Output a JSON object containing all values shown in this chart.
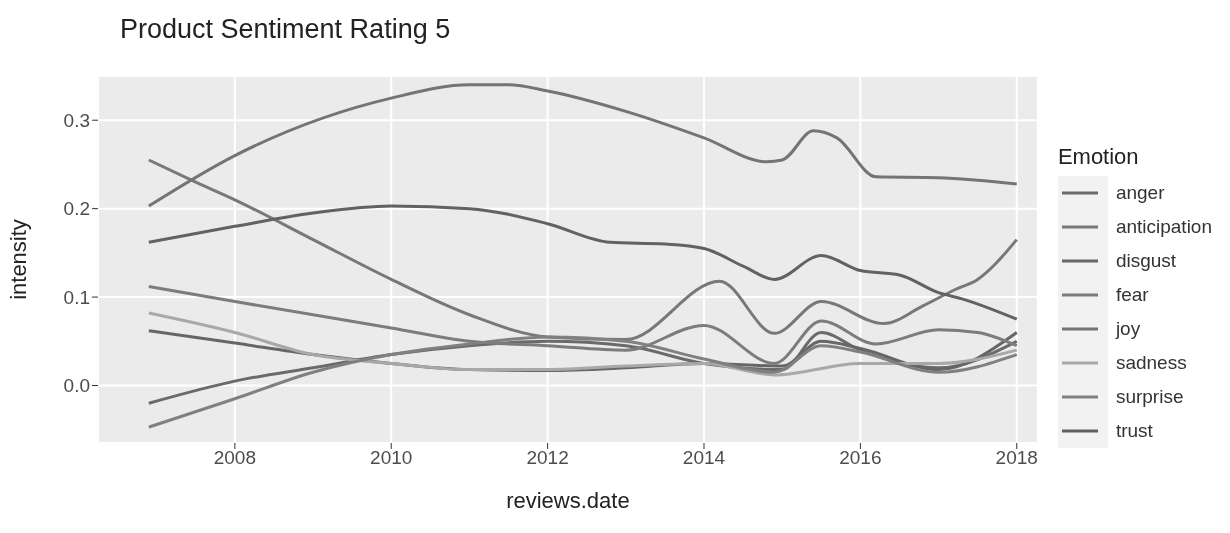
{
  "chart_data": {
    "type": "line",
    "title": "Product  Sentiment Rating 5",
    "xlabel": "reviews.date",
    "ylabel": "intensity",
    "legend_title": "Emotion",
    "legend": "right",
    "grid": true,
    "xlim": [
      2006.25,
      2018.27
    ],
    "xticks": [
      2008,
      2010,
      2012,
      2014,
      2016,
      2018
    ],
    "ylim": [
      -0.065,
      0.35
    ],
    "yticks": [
      {
        "value": 0,
        "label": "0.0"
      },
      {
        "value": 0.1,
        "label": "0.1"
      },
      {
        "value": 0.2,
        "label": "0.2"
      },
      {
        "value": 0.3,
        "label": "0.3"
      }
    ],
    "series": [
      {
        "name": "anger",
        "color": "#6a6a6a",
        "x": [
          2006.9,
          2008,
          2009,
          2010,
          2011,
          2012,
          2013,
          2014,
          2015,
          2015.5,
          2016,
          2017,
          2018
        ],
        "values": [
          -0.02,
          0.005,
          0.02,
          0.035,
          0.045,
          0.05,
          0.045,
          0.025,
          0.018,
          0.06,
          0.04,
          0.02,
          0.05
        ]
      },
      {
        "name": "anticipation",
        "color": "#787878",
        "x": [
          2006.9,
          2007.5,
          2008,
          2009,
          2010,
          2011,
          2012,
          2013,
          2014.2,
          2014.9,
          2015.5,
          2016.3,
          2016.8,
          2017.2,
          2017.5,
          2018
        ],
        "values": [
          0.255,
          0.23,
          0.21,
          0.165,
          0.12,
          0.08,
          0.055,
          0.052,
          0.118,
          0.059,
          0.095,
          0.07,
          0.09,
          0.108,
          0.12,
          0.165
        ]
      },
      {
        "name": "disgust",
        "color": "#666666",
        "x": [
          2006.9,
          2008,
          2009,
          2010,
          2011,
          2012,
          2013,
          2014,
          2015,
          2015.5,
          2016,
          2017,
          2018
        ],
        "values": [
          0.062,
          0.048,
          0.035,
          0.025,
          0.018,
          0.017,
          0.02,
          0.025,
          0.022,
          0.05,
          0.042,
          0.018,
          0.06
        ]
      },
      {
        "name": "fear",
        "color": "#7c7c7c",
        "x": [
          2006.9,
          2008,
          2010,
          2011,
          2012,
          2013,
          2014,
          2014.9,
          2015.5,
          2016.2,
          2017,
          2017.5,
          2018
        ],
        "values": [
          0.112,
          0.095,
          0.065,
          0.05,
          0.045,
          0.04,
          0.068,
          0.025,
          0.073,
          0.047,
          0.063,
          0.06,
          0.045
        ]
      },
      {
        "name": "joy",
        "color": "#747474",
        "x": [
          2006.9,
          2008,
          2010,
          2011,
          2011.5,
          2012,
          2013,
          2014,
          2014.8,
          2015,
          2015.4,
          2015.7,
          2016.2,
          2017,
          2018
        ],
        "values": [
          0.203,
          0.26,
          0.325,
          0.34,
          0.34,
          0.333,
          0.31,
          0.28,
          0.253,
          0.255,
          0.288,
          0.28,
          0.236,
          0.235,
          0.228
        ]
      },
      {
        "name": "sadness",
        "color": "#a8a8a8",
        "x": [
          2006.9,
          2008,
          2009,
          2010,
          2011,
          2012,
          2013,
          2014,
          2014.9,
          2016,
          2017,
          2018
        ],
        "values": [
          0.082,
          0.06,
          0.035,
          0.025,
          0.018,
          0.018,
          0.022,
          0.025,
          0.012,
          0.025,
          0.025,
          0.04
        ]
      },
      {
        "name": "surprise",
        "color": "#808080",
        "x": [
          2006.9,
          2008,
          2009,
          2010,
          2011,
          2012,
          2013,
          2014,
          2014.9,
          2015.5,
          2016,
          2017,
          2018
        ],
        "values": [
          -0.047,
          -0.015,
          0.015,
          0.035,
          0.047,
          0.055,
          0.05,
          0.03,
          0.015,
          0.045,
          0.038,
          0.015,
          0.035
        ]
      },
      {
        "name": "trust",
        "color": "#626262",
        "x": [
          2006.9,
          2008,
          2009,
          2010,
          2011,
          2012,
          2012.8,
          2013.5,
          2014,
          2014.5,
          2014.9,
          2015.5,
          2016,
          2016.5,
          2017,
          2017.3,
          2018
        ],
        "values": [
          0.162,
          0.18,
          0.195,
          0.203,
          0.2,
          0.183,
          0.162,
          0.16,
          0.155,
          0.135,
          0.12,
          0.147,
          0.13,
          0.125,
          0.105,
          0.098,
          0.075
        ]
      }
    ]
  }
}
